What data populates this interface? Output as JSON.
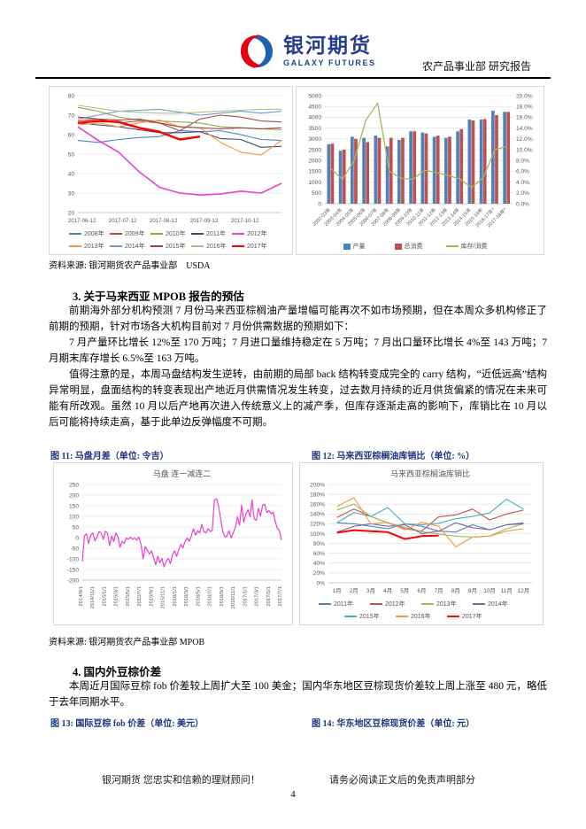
{
  "header": {
    "brand_cn": "银河期货",
    "brand_en": "GALAXY FUTURES",
    "dept_line": "农产品事业部 研究报告"
  },
  "source1": "资料来源: 银河期货农产品事业部　USDA",
  "section3": {
    "heading": "3. 关于马来西亚 MPOB 报告的预估",
    "para1": "前期海外部分机构预测 7 月份马来西亚棕榈油产量增幅可能再次不如市场预期，但在本周众多机构修正了前期的预期，针对市场各大机构目前对 7 月份供需数据的预期如下：",
    "para2": "7 月产量环比增长 12%至 170 万吨；7 月进口量维持稳定在 5 万吨；7 月出口量环比增长 4%至 143 万吨；7 月期末库存增长 6.5%至 163 万吨。",
    "para3": "值得注意的是，本周马盘结构发生逆转，由前期的局部 back 结构转变成完全的 carry 结构，“近低远高”结构异常明显，盘面结构的转变表现出产地近月供需情况发生转变，过去数月持续的近月供货偏紧的情况在未来可能有所改观。虽然 10 月以后产地再次进入传统意义上的减产季，但库存逐渐走高的影响下，库销比在 10 月以后可能将持续走高，基于此单边反弹幅度不可期。"
  },
  "fig11_title": "图 11: 马盘月差（单位: 令吉）",
  "fig12_title": "图 12: 马来西亚棕榈油库销比（单位: %）",
  "source2": "资料来源: 银河期货农产品事业部 MPOB",
  "section4": {
    "heading": "4. 国内外豆棕价差",
    "para1": "本周近月国际豆棕 fob 价差较上周扩大至 100 美金；国内华东地区豆棕现货价差较上周上涨至 480 元，略低于去年同期水平。"
  },
  "fig13_title": "图 13: 国际豆棕 fob 价差（单位: 美元）",
  "fig14_title": "图 14: 华东地区豆棕现货价差（单位: 元）",
  "footer": {
    "left": "银河期货 您忠实和信赖的理财顾问！",
    "right": "请务必阅读正文后的免责声明部分",
    "page": "4"
  },
  "colors": {
    "brand_blue": "#243E90",
    "brand_red": "#E60012",
    "figure_title_blue": "#1F3282"
  },
  "chart_data": [
    {
      "id": "seasonal-lines",
      "type": "line",
      "title": "",
      "y": {
        "min": 20,
        "max": 80,
        "step": 10,
        "fmt": "num"
      },
      "x_ticks": {
        "labels": [
          "2017-06-12",
          "2017-07-12",
          "2017-08-12",
          "2017-09-12",
          "2017-10-12"
        ],
        "pos": [
          0.02,
          0.22,
          0.42,
          0.62,
          0.82
        ]
      },
      "x_font": 6.2,
      "legend": {
        "cols": 5,
        "itemw": 46
      },
      "series": [
        {
          "name": "2008年",
          "color": "#4F81BD",
          "width": 1.1,
          "values": [
            57,
            56,
            57.5,
            58.5,
            59,
            62,
            61.5,
            62,
            60,
            57.5,
            57
          ]
        },
        {
          "name": "2009年",
          "color": "#B04A46",
          "width": 1.1,
          "values": [
            67,
            68,
            66,
            67,
            66,
            62,
            68,
            70,
            69,
            67,
            66.5
          ]
        },
        {
          "name": "2010年",
          "color": "#8DA954",
          "width": 1.1,
          "values": [
            74,
            72,
            69,
            67.5,
            67,
            66.5,
            66,
            64,
            63.5,
            63,
            62.5
          ]
        },
        {
          "name": "2011年",
          "color": "#3B4C72",
          "width": 1.1,
          "values": [
            66,
            65,
            64,
            62.5,
            61,
            61,
            61.5,
            58,
            57.5,
            53.5,
            54
          ]
        },
        {
          "name": "2012年",
          "color": "#EE3ECF",
          "width": 1.6,
          "values": [
            64,
            57,
            51,
            41,
            33,
            30,
            29,
            29.5,
            31,
            30,
            35
          ]
        },
        {
          "name": "2013年",
          "color": "#F79646",
          "width": 1.1,
          "values": [
            65,
            66,
            64,
            66,
            67.5,
            64,
            63.5,
            56,
            51,
            49.5,
            57
          ]
        },
        {
          "name": "2014年",
          "color": "#729ACA",
          "width": 1.1,
          "values": [
            68,
            70,
            72,
            72.5,
            73,
            71.5,
            70,
            71,
            72,
            71,
            72
          ]
        },
        {
          "name": "2015年",
          "color": "#9E413E",
          "width": 1.1,
          "values": [
            69,
            68,
            67.5,
            68,
            66,
            64,
            63.5,
            63,
            63.5,
            63,
            63.5
          ]
        },
        {
          "name": "2016年",
          "color": "#AFBE8F",
          "width": 1.1,
          "values": [
            75,
            73.5,
            72,
            71.5,
            71,
            71,
            71.5,
            72,
            72.5,
            73,
            73
          ]
        },
        {
          "name": "2017年",
          "color": "#FF0000",
          "width": 2.4,
          "values": [
            66,
            67,
            66.5,
            63.5,
            61.5,
            57.5,
            59,
            null,
            null,
            null,
            null
          ]
        }
      ]
    },
    {
      "id": "prod-cons",
      "type": "barline",
      "title": "",
      "y": {
        "min": 0,
        "max": 5000,
        "step": 500,
        "fmt": "num"
      },
      "y2": {
        "min": 0,
        "max": 0.2,
        "step": 0.02,
        "fmt": "pct1"
      },
      "categories": [
        "2002-03年",
        "2003-04年",
        "2004-05年",
        "2005-06年",
        "2006-07年",
        "2007-08年",
        "2008-09年",
        "2009-10年",
        "2010-11年",
        "2011-12年",
        "2012-13年",
        "2013-14年",
        "2014-15年",
        "2015-16年",
        "2016-17年*",
        "2017-18年*"
      ],
      "x_rotate": 45,
      "x_font": 5.6,
      "legend": {
        "cols": 3,
        "itemw": 58
      },
      "series": [
        {
          "name": "产量",
          "kind": "bar",
          "color": "#4F81BD",
          "values": [
            2750,
            2450,
            3100,
            3050,
            3150,
            2650,
            2950,
            3350,
            3300,
            3100,
            3050,
            3350,
            3900,
            3900,
            4300,
            4250
          ]
        },
        {
          "name": "总消费",
          "kind": "bar",
          "color": "#C0504D",
          "values": [
            2780,
            2500,
            3000,
            2850,
            3050,
            3050,
            3050,
            3350,
            3250,
            3150,
            3100,
            3450,
            3850,
            3920,
            4100,
            4250
          ]
        },
        {
          "name": "库存/消费",
          "kind": "line",
          "axis": "y2",
          "color": "#9BBB59",
          "width": 1.3,
          "values": [
            0.065,
            0.045,
            0.08,
            0.155,
            0.186,
            0.06,
            0.047,
            0.045,
            0.062,
            0.058,
            0.052,
            0.046,
            0.03,
            0.048,
            0.1,
            0.106
          ]
        }
      ]
    },
    {
      "id": "spread",
      "type": "line",
      "title": "马盘 连一减连二",
      "y": {
        "min": -200,
        "max": 250,
        "step": 50,
        "fmt": "num"
      },
      "x_ticks": {
        "labels": [
          "2014/9/1",
          "2014/11/1",
          "2015/1/1",
          "2015/3/1",
          "2015/5/1",
          "2015/7/1",
          "2015/9/1",
          "2015/11/1",
          "2016/1/1",
          "2016/3/1",
          "2016/5/1",
          "2016/7/1",
          "2016/9/1",
          "2016/11/1",
          "2017/1/1",
          "2017/3/1",
          "2017/5/1",
          "2017/7/1"
        ]
      },
      "x_rotate": 90,
      "x_font": 5.8,
      "series": [
        {
          "name": "",
          "color": "#EE3ECF",
          "width": 1.2,
          "values": [
            -113,
            8,
            18,
            -28,
            12,
            22,
            -15,
            3,
            28,
            22,
            -8,
            30,
            22,
            -38,
            8,
            -18,
            22,
            3,
            -45,
            -18,
            -28,
            -2,
            -8,
            3,
            -8,
            -2,
            -12,
            3,
            -32,
            -100,
            -42,
            -58,
            -78,
            -62,
            -92,
            -128,
            -88,
            -118,
            -98,
            -138,
            -112,
            -98,
            -122,
            -82,
            -62,
            -88,
            -58,
            -32,
            -48,
            -18,
            -2,
            -18,
            8,
            42,
            12,
            32,
            22,
            62,
            28,
            22,
            42,
            28,
            35,
            178,
            183,
            148,
            88,
            28,
            3,
            8,
            32,
            -2,
            22,
            48,
            98,
            58,
            152,
            72,
            108,
            132,
            98,
            178,
            88,
            82,
            138,
            102,
            152,
            158,
            118,
            128,
            112,
            120,
            78,
            42,
            35,
            -12
          ]
        }
      ]
    },
    {
      "id": "stock-ratio",
      "type": "line",
      "title": "马来西亚棕榈油库销比",
      "y": {
        "min": 0,
        "max": 200,
        "step": 20,
        "fmt": "pct0"
      },
      "categories": [
        "1月",
        "2月",
        "3月",
        "4月",
        "5月",
        "6月",
        "7月",
        "8月",
        "9月",
        "10月",
        "11月",
        "12月"
      ],
      "x_font": 6.5,
      "legend": {
        "cols": 4,
        "itemw": 58
      },
      "series": [
        {
          "name": "2011年",
          "color": "#4F81BD",
          "width": 1.1,
          "values": [
            122,
            120,
            115,
            110,
            120,
            115,
            105,
            103,
            118,
            108,
            118,
            122
          ]
        },
        {
          "name": "2012年",
          "color": "#C0504D",
          "width": 1.1,
          "values": [
            133,
            150,
            135,
            122,
            110,
            105,
            134,
            138,
            150,
            128,
            140,
            148
          ]
        },
        {
          "name": "2013年",
          "color": "#9BBB59",
          "width": 1.1,
          "values": [
            148,
            160,
            135,
            122,
            113,
            104,
            99,
            95,
            93,
            95,
            110,
            120
          ]
        },
        {
          "name": "2014年",
          "color": "#8064A2",
          "width": 1.1,
          "values": [
            103,
            115,
            120,
            115,
            118,
            100,
            105,
            122,
            112,
            108,
            118,
            120
          ]
        },
        {
          "name": "2015年",
          "color": "#4BACC6",
          "width": 1.1,
          "values": [
            122,
            143,
            135,
            153,
            120,
            118,
            121,
            130,
            135,
            142,
            170,
            150
          ]
        },
        {
          "name": "2016年",
          "color": "#F79646",
          "width": 1.1,
          "values": [
            155,
            173,
            120,
            123,
            108,
            123,
            115,
            73,
            93,
            95,
            105,
            110
          ]
        },
        {
          "name": "2017年",
          "color": "#FF0000",
          "width": 2.0,
          "values": [
            102,
            107,
            105,
            103,
            89,
            95,
            96,
            null,
            null,
            null,
            null,
            null
          ]
        }
      ]
    }
  ]
}
